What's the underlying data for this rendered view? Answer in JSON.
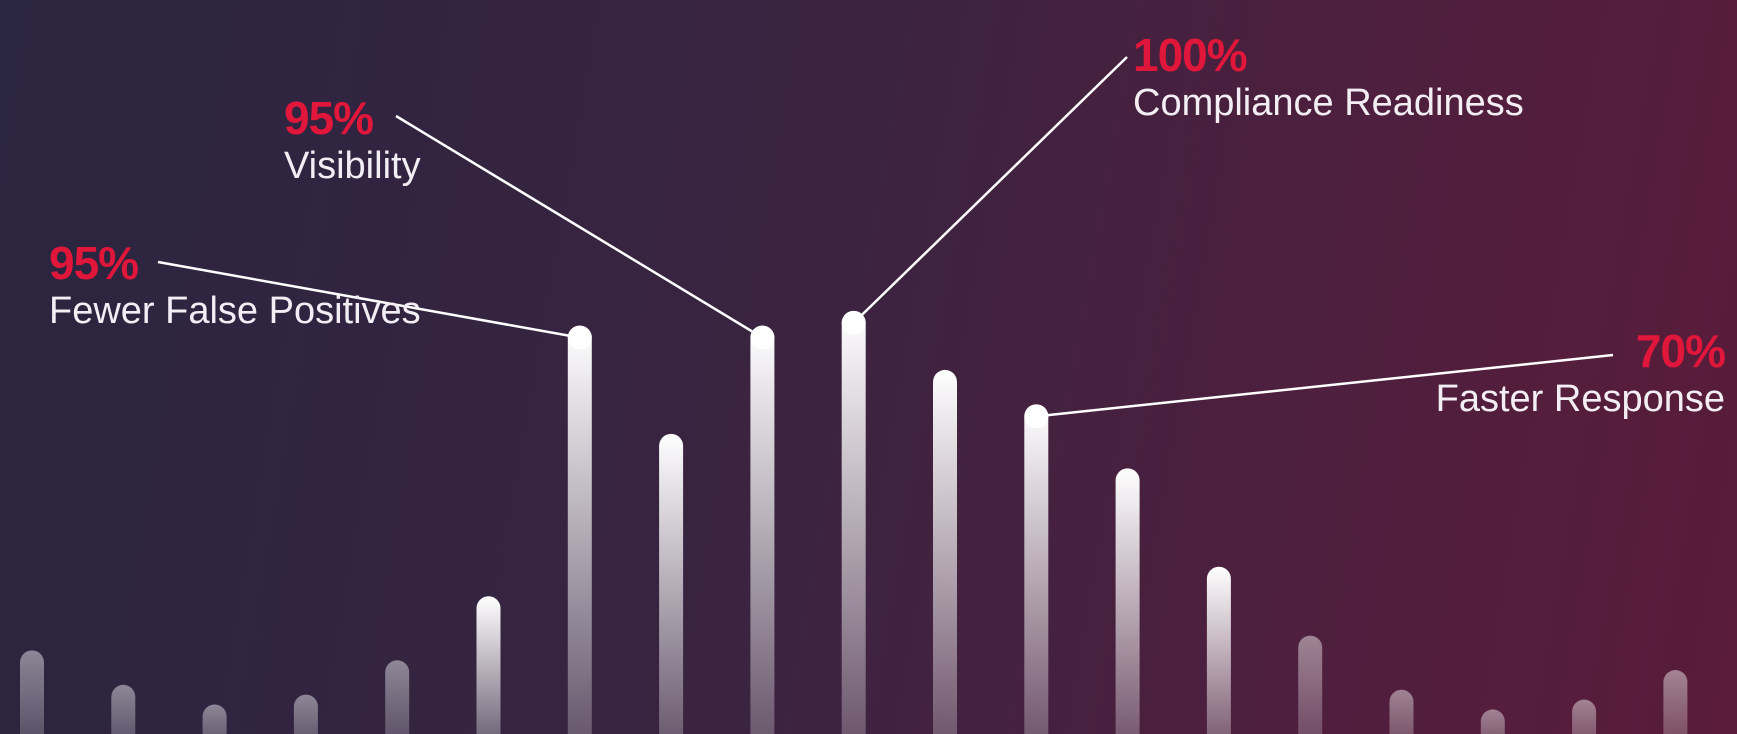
{
  "chart_data": {
    "type": "bar",
    "colors": {
      "pct": "#e0163a",
      "bar": "#ffffff",
      "line": "#ffffff"
    },
    "bars": [
      {
        "value": 17
      },
      {
        "value": 10
      },
      {
        "value": 6
      },
      {
        "value": 8
      },
      {
        "value": 15
      },
      {
        "value": 28
      },
      {
        "value": 83
      },
      {
        "value": 61
      },
      {
        "value": 83
      },
      {
        "value": 86
      },
      {
        "value": 74
      },
      {
        "value": 67
      },
      {
        "value": 54
      },
      {
        "value": 34
      },
      {
        "value": 20
      },
      {
        "value": 9
      },
      {
        "value": 5
      },
      {
        "value": 7
      },
      {
        "value": 13
      }
    ],
    "callouts": [
      {
        "value": "95%",
        "label": "Fewer False Positives",
        "bar_index": 6,
        "side": "left"
      },
      {
        "value": "95%",
        "label": "Visibility",
        "bar_index": 8,
        "side": "left"
      },
      {
        "value": "100%",
        "label": "Compliance Readiness",
        "bar_index": 9,
        "side": "right"
      },
      {
        "value": "70%",
        "label": "Faster Response",
        "bar_index": 11,
        "side": "right"
      }
    ]
  }
}
